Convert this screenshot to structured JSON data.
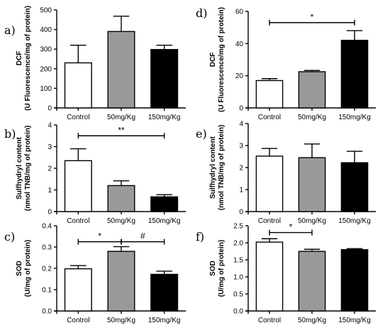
{
  "chart_data": [
    {
      "panel": "a)",
      "type": "bar",
      "categories": [
        "Control",
        "50mg/Kg",
        "150mg/Kg"
      ],
      "values": [
        230,
        390,
        298
      ],
      "errors": [
        90,
        78,
        22
      ],
      "ylabel_lines": [
        "DCF",
        "(U Fluorescence/mg of protein)"
      ],
      "ylim": [
        0,
        500
      ],
      "yticks": [
        0,
        100,
        200,
        300,
        400,
        500
      ],
      "ytick_labels": [
        "0",
        "100",
        "200",
        "300",
        "400",
        "500"
      ],
      "bar_colors": [
        "#ffffff",
        "#999999",
        "#000000"
      ],
      "significance": []
    },
    {
      "panel": "b)",
      "type": "bar",
      "categories": [
        "Control",
        "50mg/Kg",
        "150mg/Kg"
      ],
      "values": [
        2.35,
        1.2,
        0.68
      ],
      "errors": [
        0.55,
        0.22,
        0.1
      ],
      "ylabel_lines": [
        "Sulfhydryl content",
        "(nmol TNB/mg of protein)"
      ],
      "ylim": [
        0,
        4
      ],
      "yticks": [
        0,
        1,
        2,
        3,
        4
      ],
      "ytick_labels": [
        "0",
        "1",
        "2",
        "3",
        "4"
      ],
      "bar_colors": [
        "#ffffff",
        "#999999",
        "#000000"
      ],
      "significance": [
        {
          "from": 0,
          "to": 2,
          "label": "**",
          "y": 3.5
        }
      ]
    },
    {
      "panel": "c)",
      "type": "bar",
      "categories": [
        "Control",
        "50mg/Kg",
        "150mg/Kg"
      ],
      "values": [
        0.198,
        0.28,
        0.172
      ],
      "errors": [
        0.015,
        0.022,
        0.015
      ],
      "ylabel_lines": [
        "SOD",
        "(U/mg of protein)"
      ],
      "ylim": [
        0,
        0.4
      ],
      "yticks": [
        0,
        0.1,
        0.2,
        0.3,
        0.4
      ],
      "ytick_labels": [
        "0.0",
        "0.1",
        "0.2",
        "0.3",
        "0.4"
      ],
      "bar_colors": [
        "#ffffff",
        "#999999",
        "#000000"
      ],
      "significance": [
        {
          "from": 0,
          "to": 1,
          "label": "*",
          "y": 0.325
        },
        {
          "from": 1,
          "to": 2,
          "label": "#",
          "y": 0.325
        }
      ]
    },
    {
      "panel": "d)",
      "type": "bar",
      "categories": [
        "Control",
        "50mg/Kg",
        "150mg/Kg"
      ],
      "values": [
        17,
        22.5,
        42
      ],
      "errors": [
        1.2,
        0.8,
        6
      ],
      "ylabel_lines": [
        "DCF",
        "(U Fluorescence/mg of protein)"
      ],
      "ylim": [
        0,
        60
      ],
      "yticks": [
        0,
        20,
        40,
        60
      ],
      "ytick_labels": [
        "0",
        "20",
        "40",
        "60"
      ],
      "bar_colors": [
        "#ffffff",
        "#999999",
        "#000000"
      ],
      "significance": [
        {
          "from": 0,
          "to": 2,
          "label": "*",
          "y": 53
        }
      ]
    },
    {
      "panel": "e)",
      "type": "bar",
      "categories": [
        "Control",
        "50mg/Kg",
        "150mg/Kg"
      ],
      "values": [
        2.52,
        2.45,
        2.22
      ],
      "errors": [
        0.35,
        0.62,
        0.52
      ],
      "ylabel_lines": [
        "Sulfhydryl content",
        "(nmol TNB/mg of protein)"
      ],
      "ylim": [
        0,
        4
      ],
      "yticks": [
        0,
        1,
        2,
        3,
        4
      ],
      "ytick_labels": [
        "0",
        "1",
        "2",
        "3",
        "4"
      ],
      "bar_colors": [
        "#ffffff",
        "#999999",
        "#000000"
      ],
      "significance": []
    },
    {
      "panel": "f)",
      "type": "bar",
      "categories": [
        "Control",
        "50mg/Kg",
        "150mg/Kg"
      ],
      "values": [
        2.02,
        1.75,
        1.8
      ],
      "errors": [
        0.1,
        0.06,
        0.03
      ],
      "ylabel_lines": [
        "SOD",
        "(U/mg of protein)"
      ],
      "ylim": [
        0,
        2.5
      ],
      "yticks": [
        0,
        0.5,
        1,
        1.5,
        2,
        2.5
      ],
      "ytick_labels": [
        "0.0",
        "0.5",
        "1.0",
        "1.5",
        "2.0",
        "2.5"
      ],
      "bar_colors": [
        "#ffffff",
        "#999999",
        "#000000"
      ],
      "significance": [
        {
          "from": 0,
          "to": 1,
          "label": "*",
          "y": 2.3
        }
      ]
    }
  ]
}
